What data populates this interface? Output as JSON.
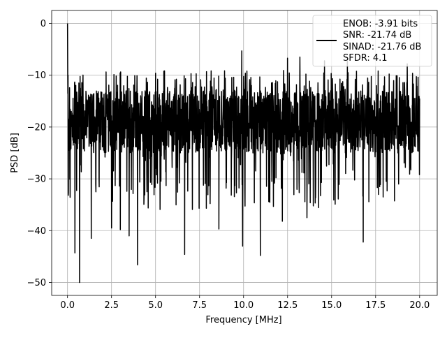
{
  "chart_data": {
    "type": "line",
    "title": "",
    "xlabel": "Frequency [MHz]",
    "ylabel": "PSD [dB]",
    "xlim": [
      -0.9,
      21.0
    ],
    "ylim": [
      -52.5,
      2.5
    ],
    "xticks": [
      0.0,
      2.5,
      5.0,
      7.5,
      10.0,
      12.5,
      15.0,
      17.5,
      20.0
    ],
    "xtick_labels": [
      "0.0",
      "2.5",
      "5.0",
      "7.5",
      "10.0",
      "12.5",
      "15.0",
      "17.5",
      "20.0"
    ],
    "yticks": [
      0,
      -10,
      -20,
      -30,
      -40,
      -50
    ],
    "ytick_labels": [
      "0",
      "−10",
      "−20",
      "−30",
      "−40",
      "−50"
    ],
    "grid": true,
    "legend_position": "top-right",
    "legend_lines": [
      "ENOB: -3.91 bits",
      "SNR: -21.74 dB",
      "SINAD: -21.76 dB",
      "SFDR: 4.1"
    ],
    "series": [
      {
        "color": "#000000",
        "x_range": [
          0.0,
          20.0
        ],
        "points": 2048,
        "spectrum": "noise floor around -20 dB (bulk between -25 and -13 dB) with a single 0 dB spike at 0 MHz",
        "peak": {
          "x": 0.0,
          "y": 0.0
        },
        "deep_minima": [
          {
            "x": 0.42,
            "y": -44.3
          },
          {
            "x": 0.68,
            "y": -50.0
          },
          {
            "x": 1.35,
            "y": -41.5
          },
          {
            "x": 2.5,
            "y": -39.5
          },
          {
            "x": 3.0,
            "y": -39.8
          },
          {
            "x": 3.5,
            "y": -41.0
          },
          {
            "x": 3.98,
            "y": -46.6
          },
          {
            "x": 6.65,
            "y": -44.6
          },
          {
            "x": 8.6,
            "y": -39.7
          },
          {
            "x": 9.95,
            "y": -43.0
          },
          {
            "x": 10.95,
            "y": -44.8
          },
          {
            "x": 12.2,
            "y": -38.2
          },
          {
            "x": 13.6,
            "y": -37.5
          },
          {
            "x": 16.8,
            "y": -42.2
          },
          {
            "x": 19.3,
            "y": -38.0
          }
        ],
        "upper_spikes": [
          {
            "x": 9.9,
            "y": -5.3
          },
          {
            "x": 12.5,
            "y": -6.7
          },
          {
            "x": 13.2,
            "y": -6.5
          },
          {
            "x": 14.6,
            "y": -7.2
          },
          {
            "x": 15.9,
            "y": -7.3
          },
          {
            "x": 19.3,
            "y": -7.8
          }
        ]
      }
    ]
  }
}
